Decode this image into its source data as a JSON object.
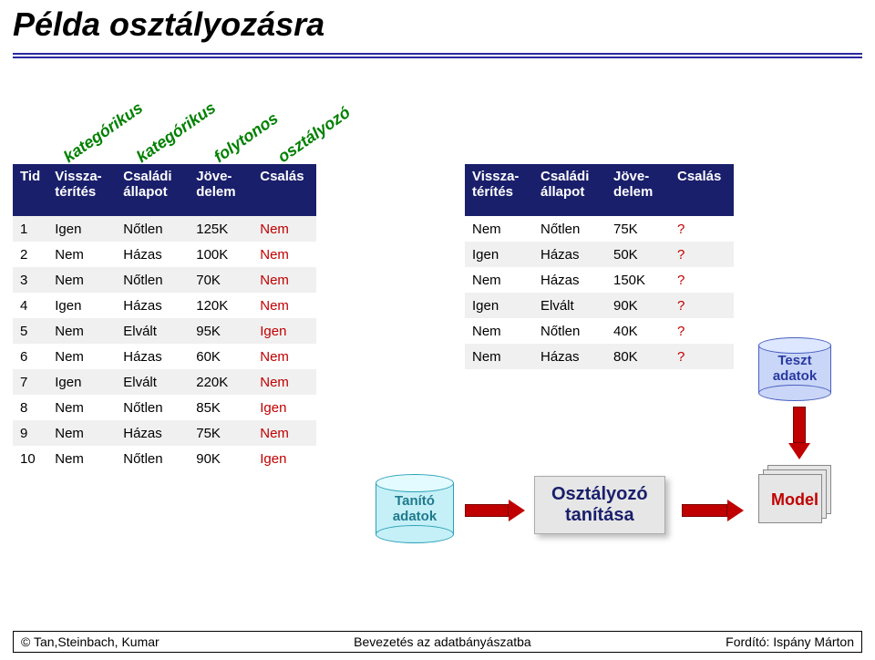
{
  "title": "Példa osztályozásra",
  "colors": {
    "header_bg": "#1a1f6b",
    "header_fg": "#ffffff",
    "row_alt": "#f0f0f0",
    "red": "#c00000",
    "green": "#008000",
    "rule": "#2a2aa0",
    "box_bg": "#e6e6e6",
    "cyl_tanito_fill": "#c5f0f7",
    "cyl_tanito_stroke": "#2aa0b8",
    "cyl_teszt_fill": "#c9d6f7",
    "cyl_teszt_stroke": "#4a5fc0"
  },
  "rotated_labels": [
    "kategórikus",
    "kategórikus",
    "folytonos",
    "osztályozó"
  ],
  "table1": {
    "columns": [
      "Tid",
      "Vissza-\ntérítés",
      "Családi\nállapot",
      "Jöve-\ndelem",
      "Csalás"
    ],
    "rows": [
      [
        "1",
        "Igen",
        "Nőtlen",
        "125K",
        "Nem"
      ],
      [
        "2",
        "Nem",
        "Házas",
        "100K",
        "Nem"
      ],
      [
        "3",
        "Nem",
        "Nőtlen",
        "70K",
        "Nem"
      ],
      [
        "4",
        "Igen",
        "Házas",
        "120K",
        "Nem"
      ],
      [
        "5",
        "Nem",
        "Elvált",
        "95K",
        "Igen"
      ],
      [
        "6",
        "Nem",
        "Házas",
        "60K",
        "Nem"
      ],
      [
        "7",
        "Igen",
        "Elvált",
        "220K",
        "Nem"
      ],
      [
        "8",
        "Nem",
        "Nőtlen",
        "85K",
        "Igen"
      ],
      [
        "9",
        "Nem",
        "Házas",
        "75K",
        "Nem"
      ],
      [
        "10",
        "Nem",
        "Nőtlen",
        "90K",
        "Igen"
      ]
    ]
  },
  "table2": {
    "columns": [
      "Vissza-\ntérítés",
      "Családi\nállapot",
      "Jöve-\ndelem",
      "Csalás"
    ],
    "rows": [
      [
        "Nem",
        "Nőtlen",
        "75K",
        "?"
      ],
      [
        "Igen",
        "Házas",
        "50K",
        "?"
      ],
      [
        "Nem",
        "Házas",
        "150K",
        "?"
      ],
      [
        "Igen",
        "Elvált",
        "90K",
        "?"
      ],
      [
        "Nem",
        "Nőtlen",
        "40K",
        "?"
      ],
      [
        "Nem",
        "Házas",
        "80K",
        "?"
      ]
    ]
  },
  "cyl_tanito": {
    "line1": "Tanító",
    "line2": "adatok"
  },
  "cyl_teszt": {
    "line1": "Teszt",
    "line2": "adatok"
  },
  "classifier": {
    "line1": "Osztályozó",
    "line2": "tanítása"
  },
  "model_label": "Model",
  "footer": {
    "left": "© Tan,Steinbach, Kumar",
    "center": "Bevezetés az adatbányászatba",
    "right": "Fordító: Ispány Márton"
  }
}
